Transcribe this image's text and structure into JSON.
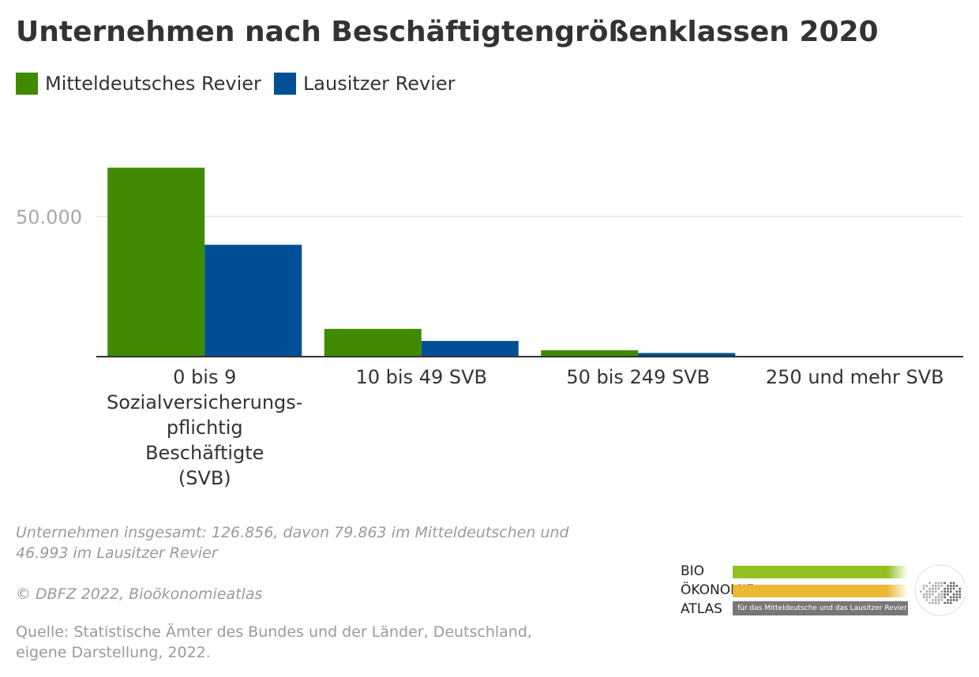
{
  "chart_data": {
    "type": "bar",
    "title": "Unternehmen nach Beschäftigtengrößenklassen 2020",
    "categories": [
      "0 bis 9 Sozialversicherungs-pflichtig Beschäftigte (SVB)",
      "10 bis 49 SVB",
      "50 bis 249 SVB",
      "250 und mehr SVB"
    ],
    "category_lines": [
      [
        "0 bis 9",
        "Sozialversicherungs-",
        "pflichtig",
        "Beschäftigte",
        "(SVB)"
      ],
      [
        "10 bis 49 SVB"
      ],
      [
        "50 bis 249 SVB"
      ],
      [
        "250 und mehr SVB"
      ]
    ],
    "series": [
      {
        "name": "Mitteldeutsches Revier",
        "color": "#3f8a00",
        "values": [
          67400,
          9900,
          2300,
          200
        ]
      },
      {
        "name": "Lausitzer Revier",
        "color": "#004f96",
        "values": [
          39900,
          5600,
          1300,
          100
        ]
      }
    ],
    "yticks": [
      {
        "value": 50000,
        "label": "50.000"
      }
    ],
    "ylim": [
      0,
      85000
    ],
    "grid": true,
    "legend": "top-left",
    "xlabel": "",
    "ylabel": ""
  },
  "notes": {
    "summary_line1": "Unternehmen insgesamt: 126.856, davon 79.863 im Mitteldeutschen und",
    "summary_line2": "46.993 im Lausitzer Revier",
    "copyright": "© DBFZ 2022, Bioökonomieatlas",
    "source_line1": "Quelle: Statistische Ämter des Bundes und der Länder, Deutschland,",
    "source_line2": "eigene Darstellung, 2022."
  },
  "logo": {
    "line1": "BIO",
    "line2": "ÖKONOMIE",
    "line3": "ATLAS",
    "subtitle": "für das Mitteldeutsche und das Lausitzer Revier",
    "colors": {
      "bio": "#93bf1f",
      "oekonomie": "#ebb833",
      "atlas": "#777777"
    }
  }
}
